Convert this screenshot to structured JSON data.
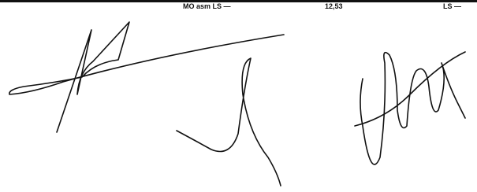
{
  "header": {
    "fields": [
      "MO asm LS —",
      "12,53",
      "LS —"
    ]
  }
}
